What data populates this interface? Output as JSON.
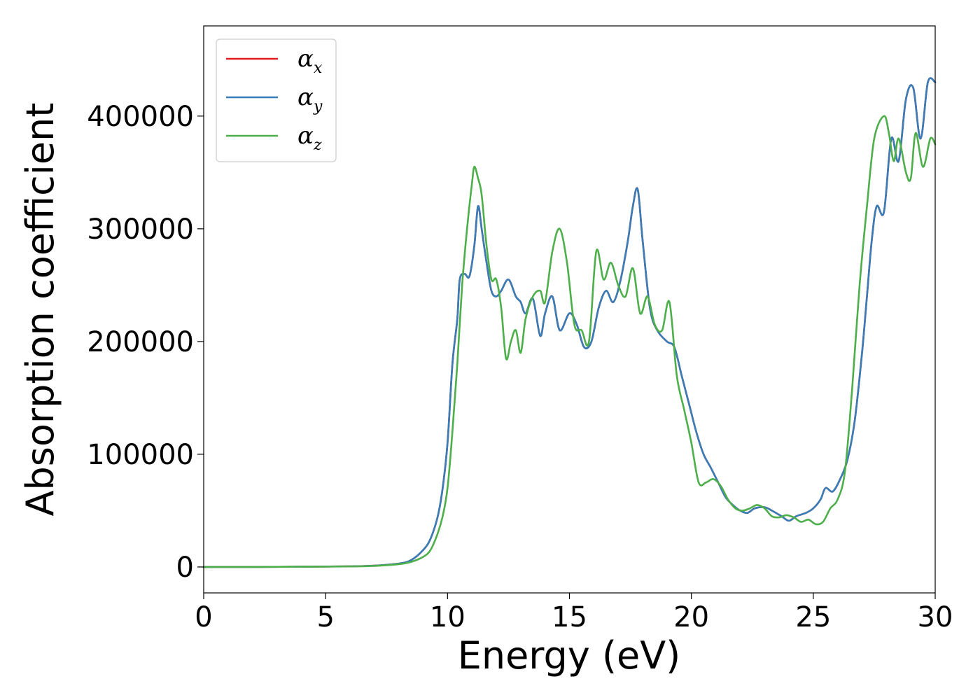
{
  "chart_data": {
    "type": "line",
    "title": "",
    "xlabel": "Energy (eV)",
    "ylabel": "Absorption coefficient",
    "xlim": [
      0,
      30
    ],
    "ylim": [
      -23000,
      480000
    ],
    "xticks": [
      0,
      5,
      10,
      15,
      20,
      25,
      30
    ],
    "yticks": [
      0,
      100000,
      200000,
      300000,
      400000
    ],
    "grid": false,
    "legend": {
      "position": "top-left"
    },
    "series": [
      {
        "name": "α_x",
        "symbol": "α",
        "subscript": "x",
        "color": "#e41a1c",
        "x": [
          0,
          2,
          4,
          6,
          7,
          8,
          8.5,
          9,
          9.3,
          9.6,
          9.8,
          10,
          10.2,
          10.4,
          10.5,
          10.7,
          10.9,
          11.1,
          11.25,
          11.4,
          11.6,
          11.8,
          12,
          12.2,
          12.5,
          12.8,
          13,
          13.2,
          13.5,
          13.8,
          14,
          14.3,
          14.6,
          15,
          15.3,
          15.6,
          15.9,
          16.2,
          16.5,
          16.8,
          17.1,
          17.4,
          17.6,
          17.8,
          18,
          18.3,
          18.6,
          19,
          19.3,
          19.6,
          19.9,
          20.2,
          20.5,
          20.8,
          21.1,
          21.4,
          21.7,
          22,
          22.3,
          22.6,
          23,
          23.3,
          23.7,
          24,
          24.3,
          24.7,
          25,
          25.3,
          25.5,
          25.8,
          26.1,
          26.4,
          26.7,
          27,
          27.2,
          27.4,
          27.6,
          27.9,
          28.2,
          28.5,
          28.8,
          29.1,
          29.4,
          29.7,
          30
        ],
        "y": [
          0,
          0,
          200,
          600,
          1200,
          3000,
          6000,
          15000,
          25000,
          45000,
          70000,
          110000,
          180000,
          220000,
          255000,
          260000,
          258000,
          285000,
          320000,
          300000,
          270000,
          245000,
          240000,
          245000,
          255000,
          240000,
          235000,
          225000,
          238000,
          205000,
          225000,
          240000,
          210000,
          225000,
          215000,
          195000,
          200000,
          230000,
          245000,
          235000,
          255000,
          290000,
          320000,
          335000,
          290000,
          230000,
          210000,
          200000,
          195000,
          170000,
          145000,
          120000,
          100000,
          88000,
          75000,
          62000,
          55000,
          50000,
          48000,
          52000,
          53000,
          50000,
          45000,
          41000,
          45000,
          48000,
          52000,
          60000,
          70000,
          67000,
          78000,
          95000,
          130000,
          190000,
          240000,
          290000,
          320000,
          315000,
          380000,
          360000,
          415000,
          425000,
          380000,
          430000,
          430000
        ]
      },
      {
        "name": "α_y",
        "symbol": "α",
        "subscript": "y",
        "color": "#377eb8",
        "x": [
          0,
          2,
          4,
          6,
          7,
          8,
          8.5,
          9,
          9.3,
          9.6,
          9.8,
          10,
          10.2,
          10.4,
          10.5,
          10.7,
          10.9,
          11.1,
          11.25,
          11.4,
          11.6,
          11.8,
          12,
          12.2,
          12.5,
          12.8,
          13,
          13.2,
          13.5,
          13.8,
          14,
          14.3,
          14.6,
          15,
          15.3,
          15.6,
          15.9,
          16.2,
          16.5,
          16.8,
          17.1,
          17.4,
          17.6,
          17.8,
          18,
          18.3,
          18.6,
          19,
          19.3,
          19.6,
          19.9,
          20.2,
          20.5,
          20.8,
          21.1,
          21.4,
          21.7,
          22,
          22.3,
          22.6,
          23,
          23.3,
          23.7,
          24,
          24.3,
          24.7,
          25,
          25.3,
          25.5,
          25.8,
          26.1,
          26.4,
          26.7,
          27,
          27.2,
          27.4,
          27.6,
          27.9,
          28.2,
          28.5,
          28.8,
          29.1,
          29.4,
          29.7,
          30
        ],
        "y": [
          0,
          0,
          200,
          600,
          1200,
          3000,
          6000,
          15000,
          25000,
          45000,
          70000,
          110000,
          180000,
          220000,
          255000,
          260000,
          258000,
          285000,
          320000,
          300000,
          270000,
          245000,
          240000,
          245000,
          255000,
          240000,
          235000,
          225000,
          238000,
          205000,
          225000,
          240000,
          210000,
          225000,
          215000,
          195000,
          200000,
          230000,
          245000,
          235000,
          255000,
          290000,
          320000,
          335000,
          290000,
          230000,
          210000,
          200000,
          195000,
          170000,
          145000,
          120000,
          100000,
          88000,
          75000,
          62000,
          55000,
          50000,
          48000,
          52000,
          53000,
          50000,
          45000,
          41000,
          45000,
          48000,
          52000,
          60000,
          70000,
          67000,
          78000,
          95000,
          130000,
          190000,
          240000,
          290000,
          320000,
          315000,
          380000,
          360000,
          415000,
          425000,
          380000,
          430000,
          430000
        ]
      },
      {
        "name": "α_z",
        "symbol": "α",
        "subscript": "z",
        "color": "#4daf4a",
        "x": [
          0,
          2,
          4,
          6,
          7,
          8,
          8.5,
          9,
          9.3,
          9.6,
          9.8,
          10,
          10.2,
          10.4,
          10.6,
          10.8,
          11,
          11.1,
          11.25,
          11.4,
          11.6,
          11.8,
          12,
          12.2,
          12.4,
          12.6,
          12.8,
          13,
          13.2,
          13.5,
          13.8,
          14,
          14.3,
          14.6,
          14.9,
          15.2,
          15.5,
          15.8,
          16.1,
          16.4,
          16.7,
          17,
          17.3,
          17.6,
          17.9,
          18.2,
          18.5,
          18.8,
          19.1,
          19.4,
          19.7,
          20,
          20.3,
          20.6,
          20.9,
          21.2,
          21.5,
          21.8,
          22.1,
          22.4,
          22.7,
          23,
          23.3,
          23.6,
          23.9,
          24.2,
          24.5,
          24.8,
          25.1,
          25.4,
          25.7,
          26,
          26.3,
          26.6,
          26.9,
          27.2,
          27.5,
          27.9,
          28.1,
          28.3,
          28.5,
          28.8,
          29,
          29.2,
          29.5,
          29.8,
          30
        ],
        "y": [
          0,
          0,
          200,
          500,
          1000,
          2500,
          4500,
          9000,
          15000,
          30000,
          45000,
          70000,
          120000,
          180000,
          250000,
          300000,
          340000,
          355000,
          345000,
          330000,
          285000,
          255000,
          255000,
          230000,
          185000,
          200000,
          210000,
          190000,
          220000,
          240000,
          245000,
          235000,
          280000,
          300000,
          270000,
          215000,
          210000,
          200000,
          280000,
          255000,
          270000,
          250000,
          240000,
          265000,
          225000,
          240000,
          215000,
          210000,
          235000,
          170000,
          140000,
          110000,
          75000,
          75000,
          78000,
          72000,
          60000,
          52000,
          50000,
          52000,
          55000,
          52000,
          45000,
          44000,
          46000,
          44000,
          40000,
          42000,
          38000,
          40000,
          52000,
          60000,
          85000,
          160000,
          250000,
          320000,
          380000,
          400000,
          385000,
          360000,
          380000,
          350000,
          345000,
          385000,
          355000,
          380000,
          375000
        ]
      }
    ]
  }
}
